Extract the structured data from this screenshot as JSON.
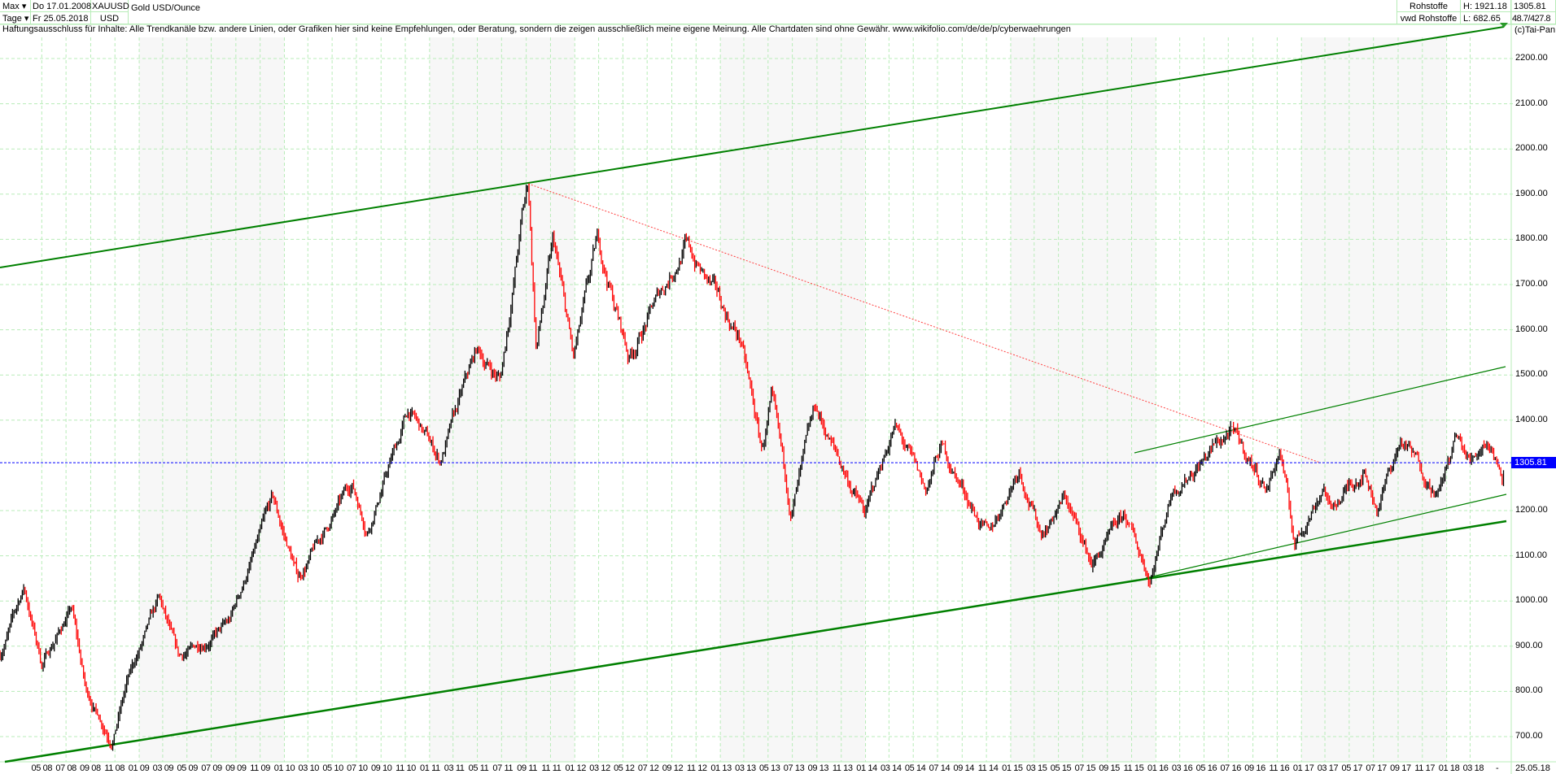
{
  "header": {
    "period_select": "Max",
    "interval_select": "Tage",
    "start_date": "Do 17.01.2008",
    "end_date": "Fr 25.05.2018",
    "symbol": "XAUUSD",
    "currency": "USD",
    "instrument_name": "Gold USD/Ounce",
    "category": "Rohstoffe",
    "source": "vwd Rohstoffe",
    "high": "H: 1921.18",
    "low": "L: 682.65",
    "last": "1305.81",
    "ratio": "48.7/427.8",
    "copyright": "(c)Tai-Pan"
  },
  "disclaimer": "Haftungsausschluss für Inhalte: Alle Trendkanäle bzw. andere Linien, oder Grafiken hier sind keine Empfehlungen, oder Beratung, sondern die zeigen ausschließlich meine eigene Meinung. Alle Chartdaten sind ohne Gewähr.  www.wikifolio.com/de/de/p/cyberwaehrungen",
  "chart_data": {
    "type": "ohlc",
    "x_range": [
      "2008-01-17",
      "2018-05-25"
    ],
    "ylim": [
      680,
      2250
    ],
    "y_ticks": [
      "2200.00",
      "2100.00",
      "2000.00",
      "1900.00",
      "1800.00",
      "1700.00",
      "1600.00",
      "1500.00",
      "1400.00",
      "1200.00",
      "1100.00",
      "1000.00",
      "900.00",
      "800.00",
      "700.00"
    ],
    "x_tick_labels": [
      "05 08",
      "07 08",
      "09 08",
      "11 08",
      "01 09",
      "03 09",
      "05 09",
      "07 09",
      "09 09",
      "11 09",
      "01 10",
      "03 10",
      "05 10",
      "07 10",
      "09 10",
      "11 10",
      "01 11",
      "03 11",
      "05 11",
      "07 11",
      "09 11",
      "11 11",
      "01 12",
      "03 12",
      "05 12",
      "07 12",
      "09 12",
      "11 12",
      "01 13",
      "03 13",
      "05 13",
      "07 13",
      "09 13",
      "11 13",
      "01 14",
      "03 14",
      "05 14",
      "07 14",
      "09 14",
      "11 14",
      "01 15",
      "03 15",
      "05 15",
      "07 15",
      "09 15",
      "11 15",
      "01 16",
      "03 16",
      "05 16",
      "07 16",
      "09 16",
      "11 16",
      "01 17",
      "03 17",
      "05 17",
      "07 17",
      "09 17",
      "11 17",
      "01 18",
      "03 18"
    ],
    "x_end_label": "25.05.18",
    "grid": true,
    "last_price": 1305.81,
    "colors": {
      "up": "#000000",
      "down": "#ff0000",
      "trend": "#008000",
      "resistance": "#ff4040",
      "last": "#0000ff",
      "grid": "#b8ecb8"
    },
    "price_path": [
      [
        "2008-01-17",
        880
      ],
      [
        "2008-03-17",
        1030
      ],
      [
        "2008-05-01",
        860
      ],
      [
        "2008-07-15",
        985
      ],
      [
        "2008-08-20",
        800
      ],
      [
        "2008-10-24",
        690
      ],
      [
        "2008-12-01",
        820
      ],
      [
        "2009-02-20",
        1000
      ],
      [
        "2009-04-10",
        870
      ],
      [
        "2009-08-15",
        950
      ],
      [
        "2009-12-02",
        1220
      ],
      [
        "2010-02-05",
        1050
      ],
      [
        "2010-06-20",
        1260
      ],
      [
        "2010-07-28",
        1160
      ],
      [
        "2010-11-09",
        1420
      ],
      [
        "2011-01-28",
        1310
      ],
      [
        "2011-04-29",
        1550
      ],
      [
        "2011-06-28",
        1490
      ],
      [
        "2011-08-22",
        1850
      ],
      [
        "2011-09-06",
        1921
      ],
      [
        "2011-09-26",
        1560
      ],
      [
        "2011-11-08",
        1790
      ],
      [
        "2011-12-29",
        1530
      ],
      [
        "2012-02-28",
        1790
      ],
      [
        "2012-05-16",
        1540
      ],
      [
        "2012-10-04",
        1790
      ],
      [
        "2012-12-28",
        1660
      ],
      [
        "2013-02-20",
        1580
      ],
      [
        "2013-04-15",
        1330
      ],
      [
        "2013-05-10",
        1440
      ],
      [
        "2013-06-28",
        1190
      ],
      [
        "2013-08-28",
        1420
      ],
      [
        "2013-12-31",
        1190
      ],
      [
        "2014-03-14",
        1390
      ],
      [
        "2014-06-01",
        1240
      ],
      [
        "2014-07-10",
        1340
      ],
      [
        "2014-11-07",
        1140
      ],
      [
        "2015-01-22",
        1300
      ],
      [
        "2015-03-17",
        1150
      ],
      [
        "2015-05-18",
        1230
      ],
      [
        "2015-07-24",
        1080
      ],
      [
        "2015-10-14",
        1185
      ],
      [
        "2015-12-17",
        1050
      ],
      [
        "2016-02-11",
        1250
      ],
      [
        "2016-07-06",
        1375
      ],
      [
        "2016-10-06",
        1250
      ],
      [
        "2016-11-08",
        1335
      ],
      [
        "2016-12-15",
        1125
      ],
      [
        "2017-02-27",
        1260
      ],
      [
        "2017-03-15",
        1200
      ],
      [
        "2017-06-06",
        1295
      ],
      [
        "2017-07-10",
        1210
      ],
      [
        "2017-09-08",
        1355
      ],
      [
        "2017-12-12",
        1240
      ],
      [
        "2018-01-25",
        1360
      ],
      [
        "2018-03-01",
        1305
      ],
      [
        "2018-04-11",
        1365
      ],
      [
        "2018-05-21",
        1285
      ],
      [
        "2018-05-25",
        1305.81
      ]
    ]
  }
}
